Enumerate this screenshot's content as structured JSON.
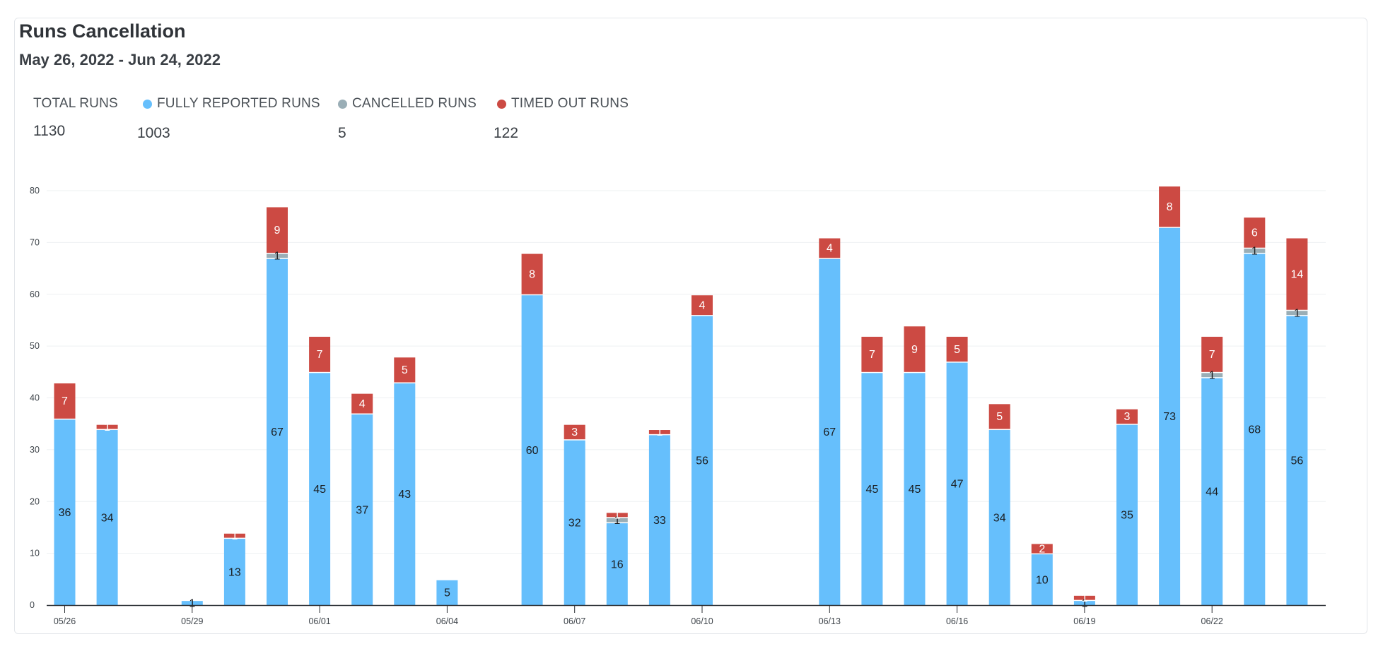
{
  "header": {
    "title": "Runs Cancellation",
    "date_range": "May 26, 2022 - Jun 24, 2022"
  },
  "stats": [
    {
      "label": "TOTAL RUNS",
      "value": "1130",
      "color": null
    },
    {
      "label": "FULLY REPORTED RUNS",
      "value": "1003",
      "color": "#66bffc"
    },
    {
      "label": "CANCELLED RUNS",
      "value": "5",
      "color": "#9aaeb6"
    },
    {
      "label": "TIMED OUT RUNS",
      "value": "122",
      "color": "#cc4a43"
    }
  ],
  "chart_data": {
    "type": "bar",
    "stacked": true,
    "grid": true,
    "ylim": [
      0,
      80
    ],
    "yticks": [
      0,
      10,
      20,
      30,
      40,
      50,
      60,
      70,
      80
    ],
    "xtick_labels": [
      "05/26",
      "05/29",
      "06/01",
      "06/04",
      "06/07",
      "06/10",
      "06/13",
      "06/16",
      "06/19",
      "06/22"
    ],
    "categories": [
      "05/26",
      "05/27",
      "05/28",
      "05/29",
      "05/30",
      "05/31",
      "06/01",
      "06/02",
      "06/03",
      "06/04",
      "06/05",
      "06/06",
      "06/07",
      "06/08",
      "06/09",
      "06/10",
      "06/11",
      "06/12",
      "06/13",
      "06/14",
      "06/15",
      "06/16",
      "06/17",
      "06/18",
      "06/19",
      "06/20",
      "06/21",
      "06/22",
      "06/23",
      "06/24"
    ],
    "series": [
      {
        "name": "FULLY REPORTED RUNS",
        "color": "#66bffc",
        "label_color": "#1a1d20",
        "values": [
          36,
          34,
          0,
          1,
          13,
          67,
          45,
          37,
          43,
          5,
          0,
          60,
          32,
          16,
          33,
          56,
          0,
          0,
          67,
          45,
          45,
          47,
          34,
          10,
          1,
          35,
          73,
          44,
          68,
          56
        ]
      },
      {
        "name": "CANCELLED RUNS",
        "color": "#9aaeb6",
        "label_color": "#1a1d20",
        "values": [
          0,
          0,
          0,
          0,
          0,
          1,
          0,
          0,
          0,
          0,
          0,
          0,
          0,
          1,
          0,
          0,
          0,
          0,
          0,
          0,
          0,
          0,
          0,
          0,
          0,
          0,
          0,
          1,
          1,
          1
        ]
      },
      {
        "name": "TIMED OUT RUNS",
        "color": "#cc4a43",
        "label_color": "#ffffff",
        "values": [
          7,
          1,
          0,
          0,
          1,
          9,
          7,
          4,
          5,
          0,
          0,
          8,
          3,
          1,
          1,
          4,
          0,
          0,
          4,
          7,
          9,
          5,
          5,
          2,
          1,
          3,
          8,
          7,
          6,
          14
        ]
      }
    ]
  }
}
